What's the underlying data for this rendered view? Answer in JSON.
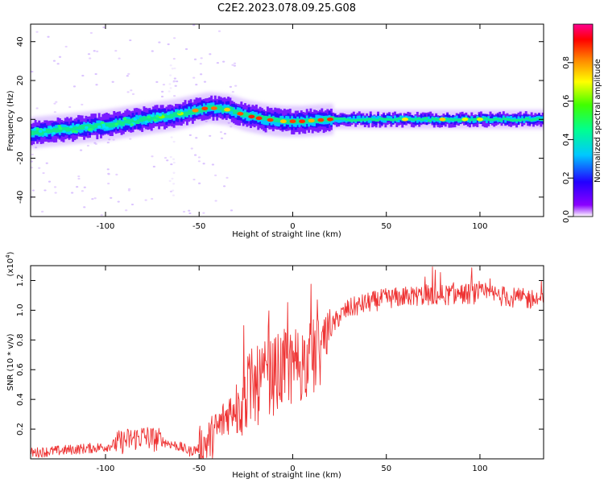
{
  "title": "C2E2.2023.078.09.25.G08",
  "colors": {
    "snr_line": "#ee3333",
    "axes": "#000000"
  },
  "chart_data": [
    {
      "type": "heatmap",
      "title": "C2E2.2023.078.09.25.G08",
      "xlabel": "Height of straight line (km)",
      "ylabel": "Frequency (Hz)",
      "xlim": [
        -140,
        134
      ],
      "ylim": [
        -50,
        49
      ],
      "x_ticks": [
        -100,
        -50,
        0,
        50,
        100
      ],
      "y_ticks": [
        -40,
        -20,
        0,
        20,
        40
      ],
      "grid": false,
      "colorbar": {
        "label": "Normalized spectral amplitude",
        "range": [
          0,
          1
        ],
        "ticks": [
          0.0,
          0.2,
          0.4,
          0.6,
          0.8
        ],
        "colormap": "rainbow (purple-blue-cyan-green-yellow-red-magenta)"
      },
      "ridge": {
        "x": [
          -140,
          -120,
          -100,
          -80,
          -65,
          -55,
          -45,
          -35,
          -25,
          -15,
          -5,
          5,
          20,
          50,
          100,
          134
        ],
        "y": [
          -7,
          -5,
          -3,
          0,
          2,
          4,
          6,
          5,
          2,
          0,
          -1,
          -1,
          0,
          0,
          0,
          0
        ]
      }
    },
    {
      "type": "line",
      "xlabel": "Height of straight line (km)",
      "ylabel": "SNR (10 * v/v)",
      "y_multiplier": "(x10^4)",
      "xlim": [
        -140,
        134
      ],
      "ylim": [
        0,
        13000
      ],
      "x_ticks": [
        -100,
        -50,
        0,
        50,
        100
      ],
      "y_ticks": [
        2000,
        4000,
        6000,
        8000,
        10000,
        12000
      ],
      "y_tick_labels": [
        "0.2",
        "0.4",
        "0.6",
        "0.8",
        "1.0",
        "1.2"
      ],
      "grid": false,
      "series": [
        {
          "x": [
            -140,
            -130,
            -120,
            -110,
            -100,
            -90,
            -80,
            -70,
            -60,
            -55,
            -50,
            -45,
            -40,
            -35,
            -30,
            -25,
            -20,
            -15,
            -10,
            -5,
            0,
            5,
            10,
            15,
            20,
            25,
            30,
            40,
            50,
            60,
            70,
            80,
            90,
            100,
            110,
            120,
            134
          ],
          "values": [
            400,
            500,
            600,
            700,
            800,
            1200,
            1500,
            1200,
            800,
            500,
            700,
            1200,
            2000,
            3000,
            3800,
            4300,
            4800,
            5200,
            5600,
            6000,
            6300,
            6500,
            6600,
            7500,
            8700,
            9600,
            10100,
            10500,
            10800,
            10900,
            11000,
            11000,
            11100,
            11100,
            11000,
            10800,
            10700
          ]
        }
      ]
    }
  ]
}
